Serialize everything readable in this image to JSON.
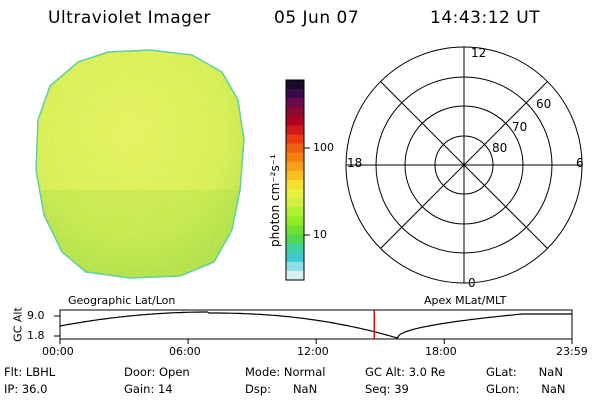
{
  "header": {
    "title": "Ultraviolet Imager",
    "date": "05 Jun 07",
    "time": "14:43:12 UT"
  },
  "colorbar": {
    "unit_label": "photon cm⁻²s⁻¹",
    "ticks": [
      "100",
      "10"
    ],
    "colors": [
      "#1b0a2a",
      "#3a0a4a",
      "#6a0a4a",
      "#8a0a30",
      "#b00020",
      "#d41818",
      "#ec3a10",
      "#f06010",
      "#f48010",
      "#f8a018",
      "#f8c020",
      "#f4e030",
      "#e8f040",
      "#d0f040",
      "#b0f030",
      "#90ec20",
      "#70e030",
      "#50d850",
      "#40d0a0",
      "#40c8d0",
      "#90dce8",
      "#d8f0f4"
    ]
  },
  "polar": {
    "labels": {
      "top": "12",
      "bottom": "0",
      "left": "18",
      "right": "6"
    },
    "lat_labels": [
      "60",
      "70",
      "80"
    ]
  },
  "strip": {
    "left_label": "Geographic Lat/Lon",
    "right_label": "Apex MLat/MLT",
    "y_axis_label": "GC Alt",
    "y_max": "9.0",
    "y_min": "1.8",
    "x_ticks": [
      "00:00",
      "06:00",
      "12:00",
      "18:00",
      "23:59"
    ],
    "marker_time_hours": 14.72,
    "marker_color": "#d01010"
  },
  "footer": {
    "filter": "Flt: LBHL",
    "ip": "IP: 36.0",
    "door": "Door: Open",
    "gain": "Gain: 14",
    "mode": "Mode: Normal",
    "dsp": "Dsp:      NaN",
    "gc_alt": "GC Alt: 3.0 Re",
    "seq": "Seq: 39",
    "glat": "GLat:      NaN",
    "glon": "GLon:      NaN"
  }
}
